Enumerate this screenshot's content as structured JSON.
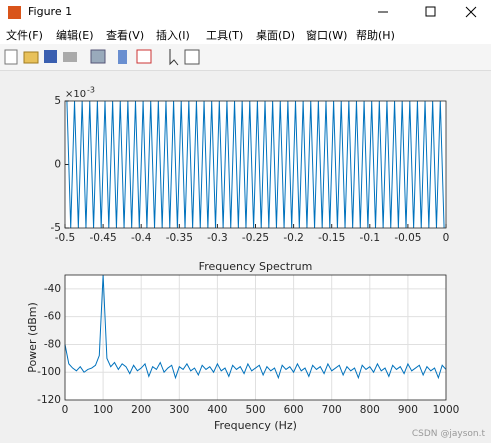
{
  "window": {
    "title": "Figure 1",
    "menus": [
      "文件(F)",
      "编辑(E)",
      "查看(V)",
      "插入(I)",
      "工具(T)",
      "桌面(D)",
      "窗口(W)",
      "帮助(H)"
    ],
    "watermark": "CSDN @jayson.t"
  },
  "chart_data": [
    {
      "type": "line",
      "y_multiplier": "×10",
      "y_multiplier_exponent": "-3",
      "grid": false,
      "x": [
        -0.4975,
        -0.4925,
        -0.4875,
        -0.4825,
        -0.4775,
        -0.4725,
        -0.4675,
        -0.4625,
        -0.4575,
        -0.4525,
        -0.4475,
        -0.4425,
        -0.4375,
        -0.4325,
        -0.4275,
        -0.4225,
        -0.4175,
        -0.4125,
        -0.4075,
        -0.4025,
        -0.3975,
        -0.3925,
        -0.3875,
        -0.3825,
        -0.3775,
        -0.3725,
        -0.3675,
        -0.3625,
        -0.3575,
        -0.3525,
        -0.3475,
        -0.3425,
        -0.3375,
        -0.3325,
        -0.3275,
        -0.3225,
        -0.3175,
        -0.3125,
        -0.3075,
        -0.3025,
        -0.2975,
        -0.2925,
        -0.2875,
        -0.2825,
        -0.2775,
        -0.2725,
        -0.2675,
        -0.2625,
        -0.2575,
        -0.2525,
        -0.2475,
        -0.2425,
        -0.2375,
        -0.2325,
        -0.2275,
        -0.2225,
        -0.2175,
        -0.2125,
        -0.2075,
        -0.2025,
        -0.1975,
        -0.1925,
        -0.1875,
        -0.1825,
        -0.1775,
        -0.1725,
        -0.1675,
        -0.1625,
        -0.1575,
        -0.1525,
        -0.1475,
        -0.1425,
        -0.1375,
        -0.1325,
        -0.1275,
        -0.1225,
        -0.1175,
        -0.1125,
        -0.1075,
        -0.1025,
        -0.0975,
        -0.0925,
        -0.0875,
        -0.0825,
        -0.0775,
        -0.0725,
        -0.0675,
        -0.0625,
        -0.0575,
        -0.0525,
        -0.0475,
        -0.0425,
        -0.0375,
        -0.0325,
        -0.0275,
        -0.0225,
        -0.0175,
        -0.0125,
        -0.0075,
        -0.0025
      ],
      "series": [
        {
          "color": "#0072bd",
          "values": [
            5,
            -5,
            5,
            -5,
            5,
            -5,
            5,
            -5,
            5,
            -5,
            5,
            -5,
            5,
            -5,
            5,
            -5,
            5,
            -5,
            5,
            -5,
            5,
            -5,
            5,
            -5,
            5,
            -5,
            5,
            -5,
            5,
            -5,
            5,
            -5,
            5,
            -5,
            5,
            -5,
            5,
            -5,
            5,
            -5,
            5,
            -5,
            5,
            -5,
            5,
            -5,
            5,
            -5,
            5,
            -5,
            5,
            -5,
            5,
            -5,
            5,
            -5,
            5,
            -5,
            5,
            -5,
            5,
            -5,
            5,
            -5,
            5,
            -5,
            5,
            -5,
            5,
            -5,
            5,
            -5,
            5,
            -5,
            5,
            -5,
            5,
            -5,
            5,
            -5,
            5,
            -5,
            5,
            -5,
            5,
            -5,
            5,
            -5,
            5,
            -5,
            5,
            -5,
            5,
            -5,
            5,
            -5,
            5,
            -5,
            5,
            -5
          ]
        }
      ],
      "xlim": [
        -0.5,
        0
      ],
      "ylim": [
        -5,
        5
      ],
      "xticks": [
        -0.5,
        -0.45,
        -0.4,
        -0.35,
        -0.3,
        -0.25,
        -0.2,
        -0.15,
        -0.1,
        -0.05,
        0
      ],
      "yticks": [
        -5,
        0,
        5
      ]
    },
    {
      "type": "line",
      "title": "Frequency Spectrum",
      "x_label": "Frequency (Hz)",
      "y_label": "Power (dBm)",
      "grid": true,
      "x": [
        0,
        10,
        20,
        30,
        40,
        50,
        60,
        70,
        80,
        90,
        100,
        110,
        120,
        130,
        140,
        150,
        160,
        170,
        180,
        190,
        200,
        210,
        220,
        230,
        240,
        250,
        260,
        270,
        280,
        290,
        300,
        310,
        320,
        330,
        340,
        350,
        360,
        370,
        380,
        390,
        400,
        410,
        420,
        430,
        440,
        450,
        460,
        470,
        480,
        490,
        500,
        510,
        520,
        530,
        540,
        550,
        560,
        570,
        580,
        590,
        600,
        610,
        620,
        630,
        640,
        650,
        660,
        670,
        680,
        690,
        700,
        710,
        720,
        730,
        740,
        750,
        760,
        770,
        780,
        790,
        800,
        810,
        820,
        830,
        840,
        850,
        860,
        870,
        880,
        890,
        900,
        910,
        920,
        930,
        940,
        950,
        960,
        970,
        980,
        990,
        1000
      ],
      "series": [
        {
          "color": "#0072bd",
          "values": [
            -80,
            -94,
            -97,
            -99,
            -96,
            -100,
            -98,
            -97,
            -95,
            -88,
            -30,
            -90,
            -96,
            -93,
            -98,
            -94,
            -96,
            -101,
            -95,
            -99,
            -97,
            -94,
            -103,
            -96,
            -98,
            -93,
            -100,
            -97,
            -95,
            -104,
            -96,
            -98,
            -94,
            -99,
            -97,
            -102,
            -95,
            -98,
            -96,
            -100,
            -94,
            -99,
            -97,
            -103,
            -95,
            -98,
            -96,
            -101,
            -94,
            -99,
            -97,
            -95,
            -102,
            -96,
            -99,
            -97,
            -104,
            -95,
            -98,
            -96,
            -100,
            -94,
            -99,
            -97,
            -103,
            -95,
            -98,
            -96,
            -101,
            -94,
            -99,
            -97,
            -95,
            -102,
            -96,
            -99,
            -97,
            -104,
            -95,
            -98,
            -96,
            -100,
            -94,
            -99,
            -97,
            -103,
            -95,
            -98,
            -96,
            -101,
            -94,
            -99,
            -97,
            -95,
            -102,
            -96,
            -99,
            -97,
            -104,
            -95,
            -98
          ]
        }
      ],
      "xlim": [
        0,
        1000
      ],
      "ylim": [
        -120,
        -30
      ],
      "xticks": [
        0,
        100,
        200,
        300,
        400,
        500,
        600,
        700,
        800,
        900,
        1000
      ],
      "yticks": [
        -120,
        -100,
        -80,
        -60,
        -40
      ]
    }
  ]
}
